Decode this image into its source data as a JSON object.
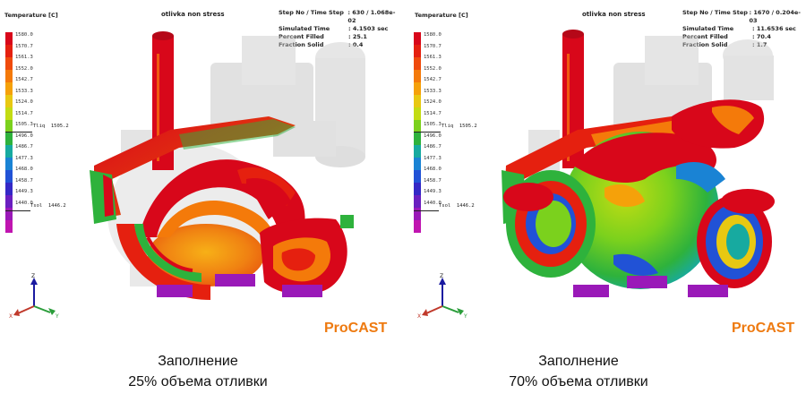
{
  "legend": {
    "title": "Temperature [C]",
    "ticks": [
      "1580.0",
      "1570.7",
      "1561.3",
      "1552.0",
      "1542.7",
      "1533.3",
      "1524.0",
      "1514.7",
      "1505.3",
      "1496.0",
      "1486.7",
      "1477.3",
      "1468.0",
      "1458.7",
      "1449.3",
      "1440.0"
    ],
    "colors": [
      "#d8071a",
      "#e5200f",
      "#ef4a0c",
      "#f47a0a",
      "#f5a10a",
      "#e8c812",
      "#c3dc13",
      "#7bd11d",
      "#2eb23c",
      "#17aaa0",
      "#1a83d4",
      "#2152d6",
      "#3428c6",
      "#6a1fc0",
      "#9a19b8",
      "#c015b0"
    ],
    "liquidus_label": "Tliq",
    "liquidus_value": "1505.2",
    "solidus_label": "Tsol",
    "solidus_value": "1446.2"
  },
  "left": {
    "model_name": "otlivka non stress",
    "info": [
      {
        "label": "Step No / Time Step",
        "value": ": 630 / 1.068e-02"
      },
      {
        "label": "Simulated Time",
        "value": ": 4.1503 sec"
      },
      {
        "label": "Percent Filled",
        "value": ": 25.1"
      },
      {
        "label": "Fraction Solid",
        "value": ": 0.4"
      }
    ],
    "brand": "ProCAST",
    "caption_line1": "Заполнение",
    "caption_line2": "25% объема отливки",
    "axes": {
      "z": "Z",
      "x": "X",
      "y": "Y"
    }
  },
  "right": {
    "model_name": "otlivka non stress",
    "info": [
      {
        "label": "Step No / Time Step",
        "value": ": 1670 / 0.204e-03"
      },
      {
        "label": "Simulated Time",
        "value": ": 11.6536 sec"
      },
      {
        "label": "Percent Filled",
        "value": ": 70.4"
      },
      {
        "label": "Fraction Solid",
        "value": ": 1.7"
      }
    ],
    "brand": "ProCAST",
    "caption_line1": "Заполнение",
    "caption_line2": "70% объема отливки",
    "axes": {
      "z": "Z",
      "x": "X",
      "y": "Y"
    }
  }
}
